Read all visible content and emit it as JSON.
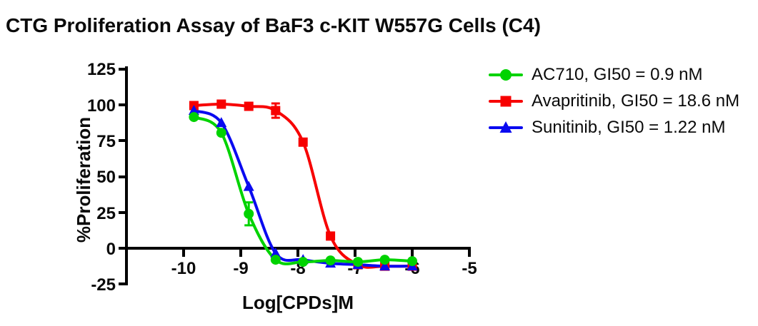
{
  "title": "CTG Proliferation Assay of BaF3 c-KIT W557G Cells (C4)",
  "chart_data": {
    "type": "line",
    "title": "CTG Proliferation Assay of BaF3 c-KIT W557G Cells (C4)",
    "xlabel": "Log[CPDs]M",
    "ylabel": "%Proliferation",
    "xlim": [
      -11,
      -5
    ],
    "ylim": [
      -25,
      125
    ],
    "grid": false,
    "legend_position": "right",
    "curve_fit": "sigmoidal dose-response",
    "x_ticks": [
      {
        "value": -10,
        "label": "-10"
      },
      {
        "value": -9,
        "label": "-9"
      },
      {
        "value": -8,
        "label": "-8"
      },
      {
        "value": -7,
        "label": "-7"
      },
      {
        "value": -6,
        "label": "-6"
      },
      {
        "value": -5,
        "label": "-5"
      }
    ],
    "y_ticks": [
      {
        "value": 125,
        "label": "125"
      },
      {
        "value": 100,
        "label": "100"
      },
      {
        "value": 75,
        "label": "75"
      },
      {
        "value": 50,
        "label": "50"
      },
      {
        "value": 25,
        "label": "25"
      },
      {
        "value": 0,
        "label": "0"
      },
      {
        "value": -25,
        "label": "-25"
      }
    ],
    "x": [
      -9.82,
      -9.34,
      -8.86,
      -8.39,
      -7.91,
      -7.43,
      -6.95,
      -6.48,
      -6.0
    ],
    "series": [
      {
        "name": "AC710",
        "gi50": "0.9 nM",
        "legend_label": "AC710, GI50 = 0.9 nM",
        "color": "#00d300",
        "marker": "circle",
        "values": [
          91.5,
          80.5,
          24,
          -8,
          -9.5,
          -8.5,
          -9.5,
          -8,
          -9
        ]
      },
      {
        "name": "Avapritinib",
        "gi50": "18.6 nM",
        "legend_label": "Avapritinib, GI50 = 18.6 nM",
        "color": "#f70000",
        "marker": "square",
        "values": [
          99.5,
          100.5,
          99,
          96,
          74,
          8.5,
          -11.5,
          -12.5,
          -12.5
        ]
      },
      {
        "name": "Sunitinib",
        "gi50": "1.22 nM",
        "legend_label": "Sunitinib, GI50 = 1.22 nM",
        "color": "#0a0af0",
        "marker": "triangle",
        "values": [
          96,
          87.5,
          43,
          -3.5,
          -8,
          -10.5,
          -11.5,
          -12.5,
          -12.5
        ]
      }
    ],
    "error_bars": [
      {
        "series": "AC710",
        "x": -8.86,
        "y": 24,
        "err": 8
      },
      {
        "series": "Avapritinib",
        "x": -8.39,
        "y": 96,
        "err": 5
      }
    ]
  }
}
